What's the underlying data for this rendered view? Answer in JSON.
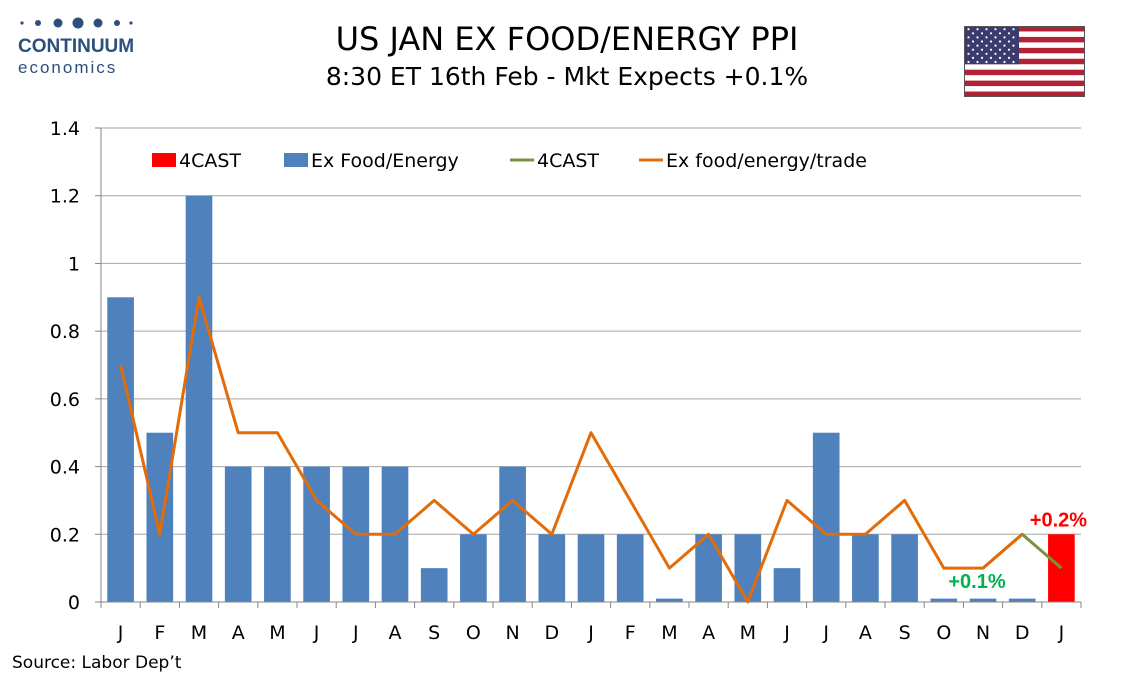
{
  "header": {
    "logo_name": "CONTINUUM",
    "logo_sub": "economics",
    "title": "US JAN EX FOOD/ENERGY PPI",
    "subtitle": "8:30 ET 16th Feb - Mkt Expects +0.1%"
  },
  "footer": {
    "source": "Source: Labor Dep’t"
  },
  "colors": {
    "bar_actual": "#4f81bd",
    "bar_forecast": "#ff0000",
    "line_trade": "#e36c0a",
    "line_forecast": "#77933c",
    "label_forecast": "#ff0000",
    "label_expect": "#00b050",
    "logo": "#2d4f7c"
  },
  "chart_data": {
    "type": "bar",
    "title": "US JAN EX FOOD/ENERGY PPI",
    "subtitle": "8:30 ET 16th Feb - Mkt Expects +0.1%",
    "categories": [
      "J",
      "F",
      "M",
      "A",
      "M",
      "J",
      "J",
      "A",
      "S",
      "O",
      "N",
      "D",
      "J",
      "F",
      "M",
      "A",
      "M",
      "J",
      "J",
      "A",
      "S",
      "O",
      "N",
      "D",
      "J"
    ],
    "ylim": [
      0,
      1.4
    ],
    "yticks": [
      0,
      0.2,
      0.4,
      0.6,
      0.8,
      1,
      1.2,
      1.4
    ],
    "ytick_labels": [
      "0",
      "0.2",
      "0.4",
      "0.6",
      "0.8",
      "1",
      "1.2",
      "1.4"
    ],
    "grid": true,
    "legend_position": "top",
    "series": [
      {
        "name": "4CAST",
        "kind": "bar",
        "values": [
          null,
          null,
          null,
          null,
          null,
          null,
          null,
          null,
          null,
          null,
          null,
          null,
          null,
          null,
          null,
          null,
          null,
          null,
          null,
          null,
          null,
          null,
          null,
          null,
          0.2
        ]
      },
      {
        "name": "Ex Food/Energy",
        "kind": "bar",
        "values": [
          0.9,
          0.5,
          1.2,
          0.4,
          0.4,
          0.4,
          0.4,
          0.4,
          0.1,
          0.2,
          0.4,
          0.2,
          0.2,
          0.2,
          0.01,
          0.2,
          0.2,
          0.1,
          0.5,
          0.2,
          0.2,
          0.01,
          0.01,
          0.01,
          null
        ]
      },
      {
        "name": "4CAST",
        "kind": "line",
        "values": [
          null,
          null,
          null,
          null,
          null,
          null,
          null,
          null,
          null,
          null,
          null,
          null,
          null,
          null,
          null,
          null,
          null,
          null,
          null,
          null,
          null,
          null,
          0.1,
          0.2,
          0.1
        ]
      },
      {
        "name": "Ex food/energy/trade",
        "kind": "line",
        "values": [
          0.7,
          0.2,
          0.9,
          0.5,
          0.5,
          0.3,
          0.2,
          0.2,
          0.3,
          0.2,
          0.3,
          0.2,
          0.5,
          0.3,
          0.1,
          0.2,
          0.0,
          0.3,
          0.2,
          0.2,
          0.3,
          0.1,
          0.1,
          0.2,
          null
        ]
      }
    ],
    "annotations": [
      {
        "text": "+0.2%",
        "category_index": 24,
        "y": 0.2,
        "color_key": "label_forecast"
      },
      {
        "text": "+0.1%",
        "category_index": 22,
        "y": 0.1,
        "color_key": "label_expect"
      }
    ]
  }
}
